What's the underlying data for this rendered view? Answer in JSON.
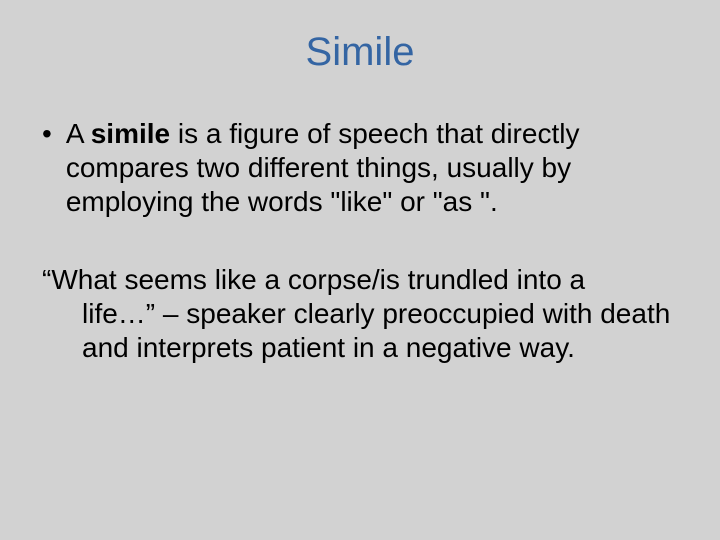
{
  "colors": {
    "background": "#d2d2d2",
    "title": "#3465a3",
    "body_text": "#000000"
  },
  "typography": {
    "title_fontsize": 40,
    "body_fontsize": 28,
    "line_height": 34,
    "font_family": "Arial"
  },
  "title": "Simile",
  "bullet": {
    "marker": "•",
    "pre": "A ",
    "bold": "simile",
    "post": " is a figure of speech that directly compares two different things, usually by employing the words \"like\" or \"as \"."
  },
  "quote": {
    "line1": "“What seems like a corpse/is trundled into a",
    "line2_rest": "life…” – speaker clearly preoccupied with death and interprets patient in a negative way."
  }
}
